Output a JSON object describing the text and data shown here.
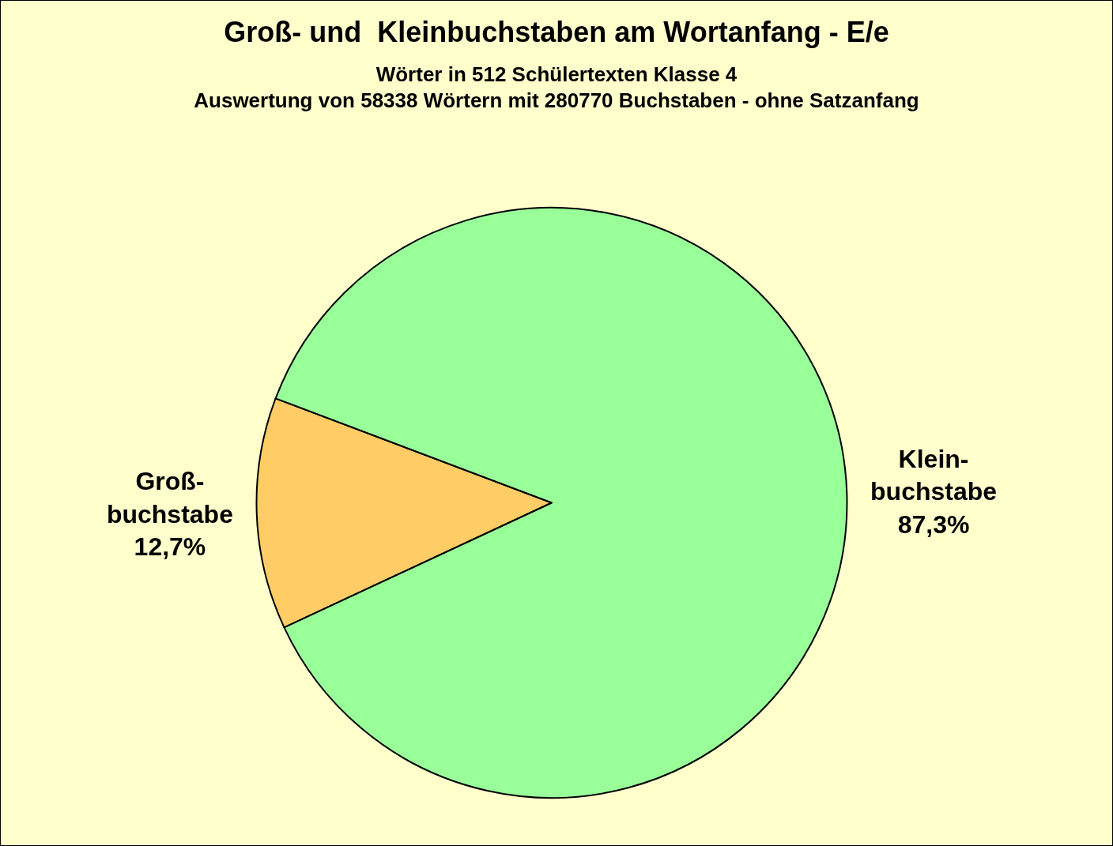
{
  "chart_data": {
    "type": "pie",
    "title": "Groß- und  Kleinbuchstaben am Wortanfang - E/e",
    "subtitle": "Wörter in 512 Schülertexten Klasse 4\nAuswertung von 58338 Wörtern mit 280770 Buchstaben - ohne Satzanfang",
    "categories": [
      "Groß-\nbuchstabe",
      "Klein-\nbuchstabe"
    ],
    "values": [
      12.7,
      87.3
    ],
    "value_labels": [
      "12,7%",
      "87,3%"
    ],
    "colors": [
      "#ffcc66",
      "#99ff99"
    ],
    "legend": false
  }
}
